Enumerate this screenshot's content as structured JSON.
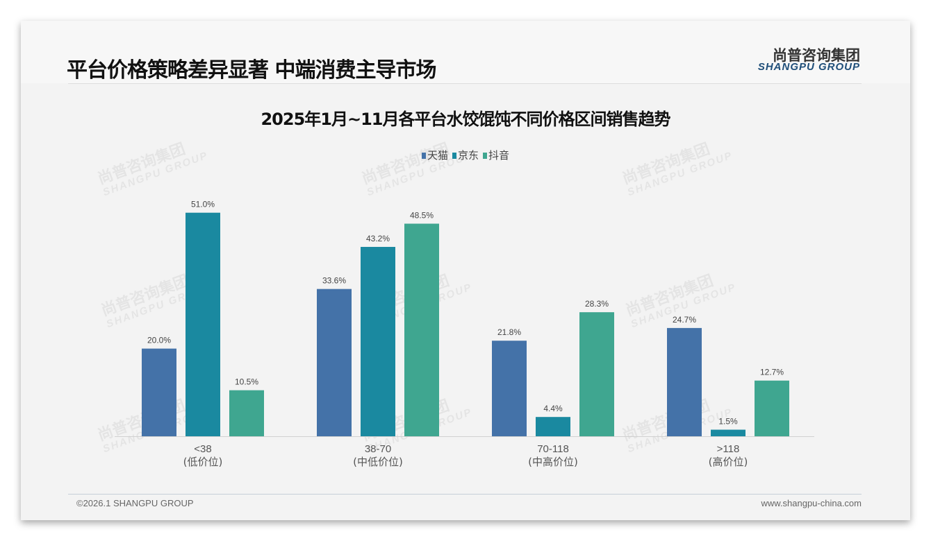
{
  "header": {
    "title": "平台价格策略差异显著 中端消费主导市场",
    "logo_cn": "尚普咨询集团",
    "logo_en": "SHANGPU GROUP"
  },
  "footer": {
    "copyright": "©2026.1 SHANGPU GROUP",
    "website": "www.shangpu-china.com"
  },
  "chart_data": {
    "type": "bar",
    "title": "2025年1月~11月各平台水饺馄饨不同价格区间销售趋势",
    "categories": [
      "<38",
      "38-70",
      "70-118",
      ">118"
    ],
    "category_sublabels": [
      "(低价位)",
      "(中低价位)",
      "(中高价位)",
      "(高价位)"
    ],
    "series": [
      {
        "name": "天猫",
        "color": "#4472a8",
        "values": [
          20.0,
          33.6,
          21.8,
          24.7
        ]
      },
      {
        "name": "京东",
        "color": "#1a89a0",
        "values": [
          51.0,
          43.2,
          4.4,
          1.5
        ]
      },
      {
        "name": "抖音",
        "color": "#3fa690",
        "values": [
          10.5,
          48.5,
          28.3,
          12.7
        ]
      }
    ],
    "unit": "%",
    "legend": "top-center",
    "grid": false,
    "ylim": [
      0,
      55
    ]
  }
}
